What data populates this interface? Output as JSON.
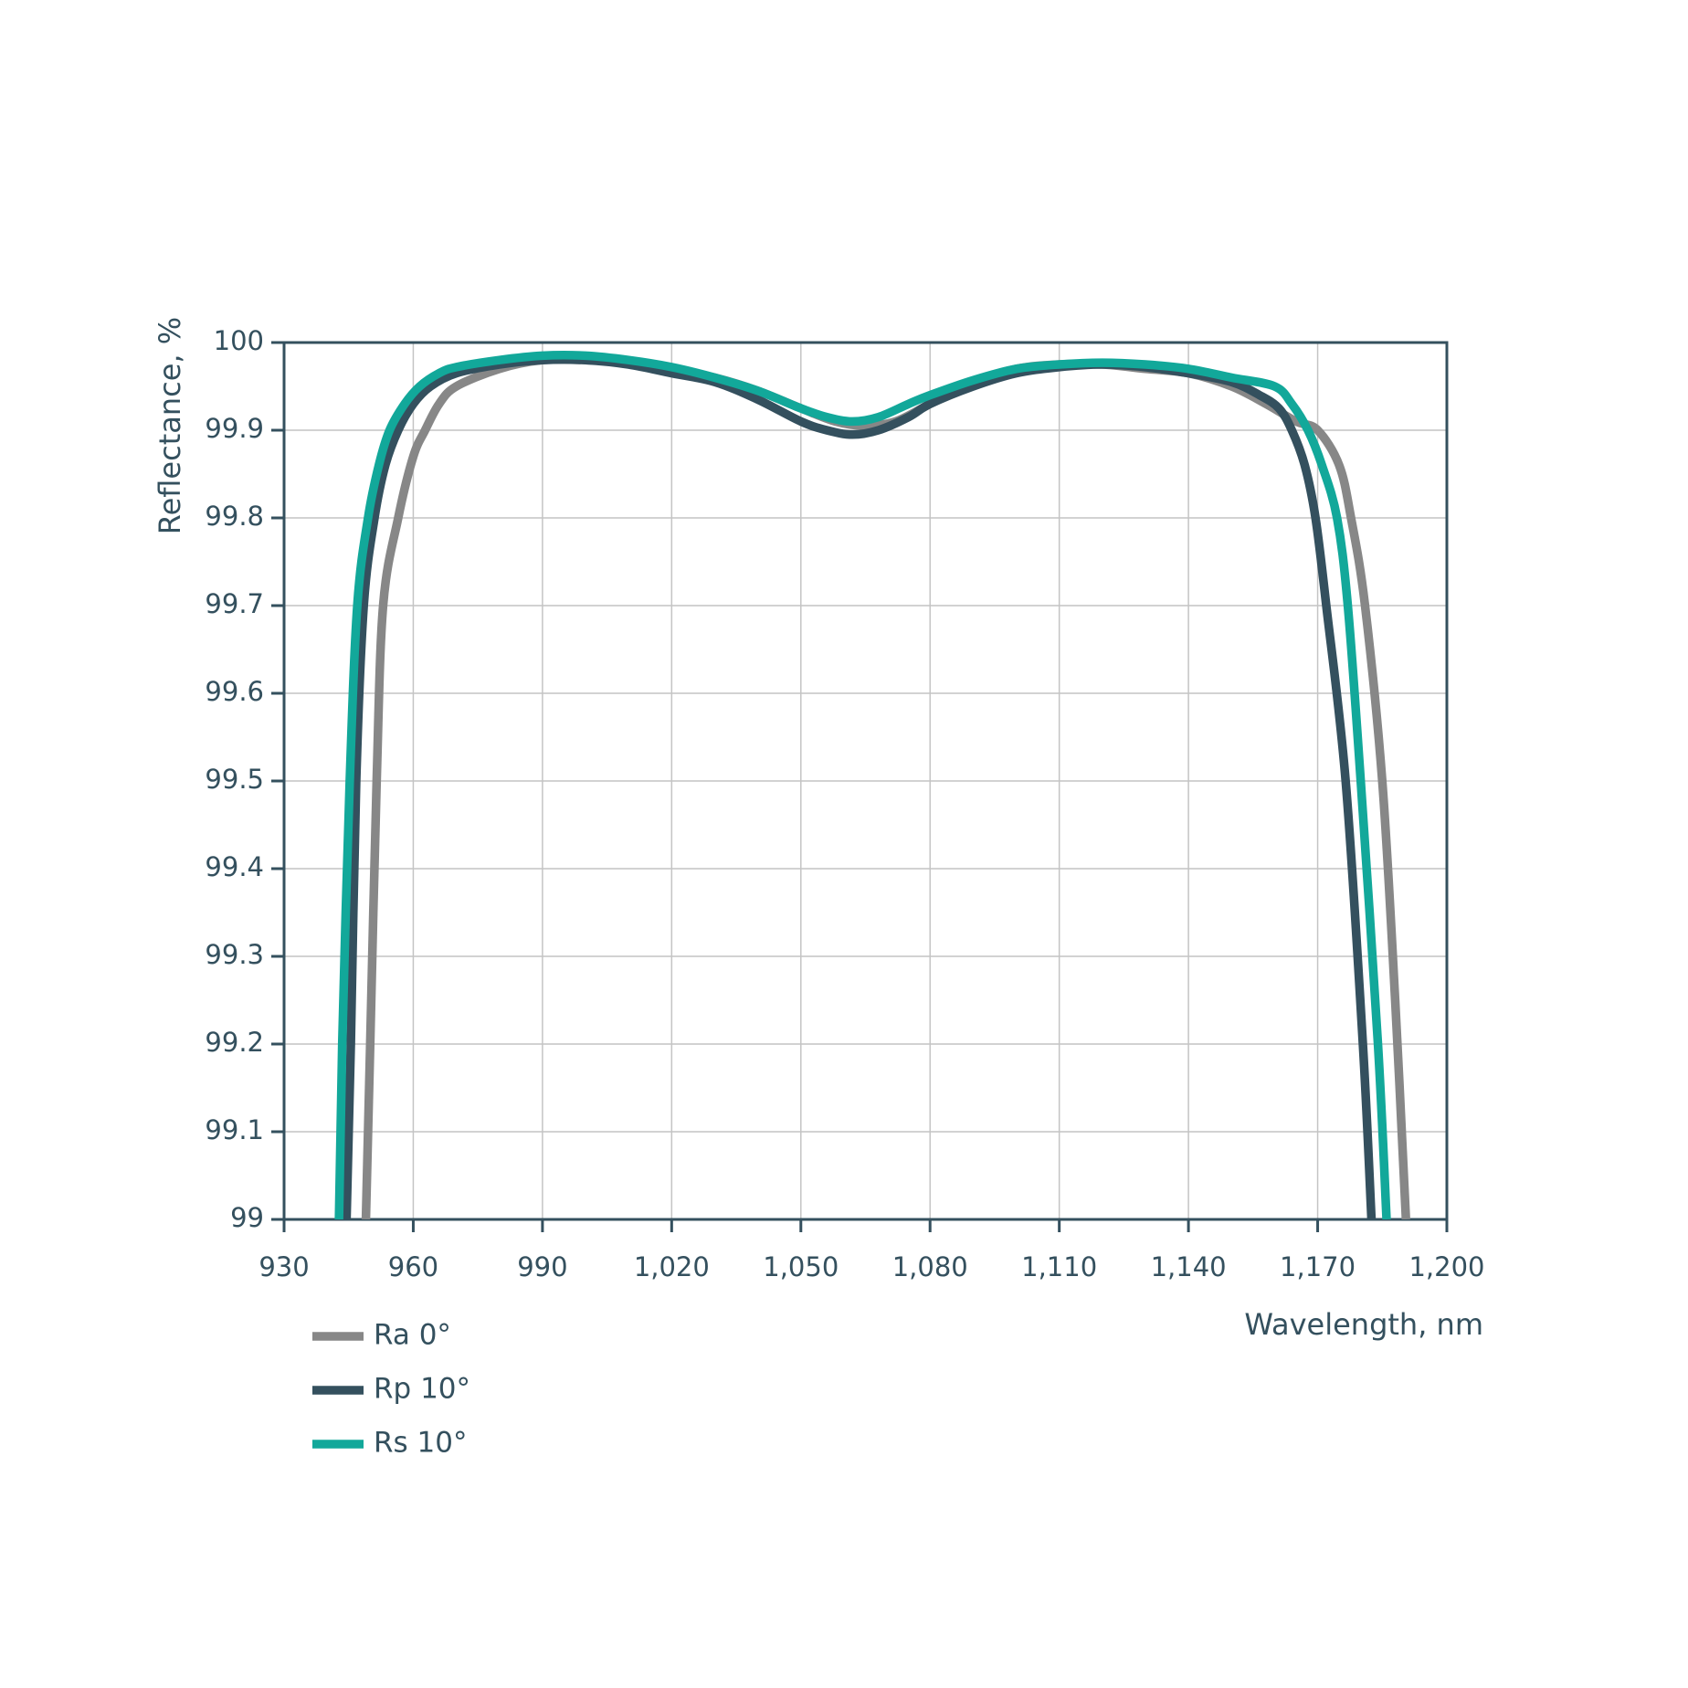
{
  "chart_data": {
    "type": "line",
    "x_label": "Wavelength, nm",
    "y_label": "Reflectance, %",
    "xlim": [
      930,
      1200
    ],
    "ylim": [
      99,
      100
    ],
    "xticks": [
      930,
      960,
      990,
      {
        "value": 1020,
        "label": "1,020"
      },
      {
        "value": 1050,
        "label": "1,050"
      },
      {
        "value": 1080,
        "label": "1,080"
      },
      {
        "value": 1110,
        "label": "1,110"
      },
      {
        "value": 1140,
        "label": "1,140"
      },
      {
        "value": 1170,
        "label": "1,170"
      },
      {
        "value": 1200,
        "label": "1,200"
      }
    ],
    "yticks": [
      99,
      99.1,
      99.2,
      99.3,
      99.4,
      99.5,
      99.6,
      99.7,
      99.8,
      99.9,
      100
    ],
    "grid": true,
    "legend": "bottom-left",
    "series": [
      {
        "name": "Ra 0°",
        "color": "#878787",
        "x": [
          949,
          950,
          951.5,
          953,
          956.5,
          960,
          962.75,
          966,
          970,
          980,
          990,
          1000,
          1010,
          1020,
          1030,
          1040,
          1050,
          1058,
          1065,
          1072,
          1080,
          1090,
          1100,
          1110,
          1120,
          1130,
          1140,
          1150,
          1158,
          1165,
          1170,
          1175,
          1177.75,
          1181,
          1185,
          1188,
          1190.5
        ],
        "values": [
          99,
          99.2,
          99.5,
          99.7,
          99.8,
          99.87,
          99.9,
          99.93,
          99.95,
          99.97,
          99.98,
          99.98,
          99.978,
          99.97,
          99.96,
          99.945,
          99.925,
          99.91,
          99.905,
          99.91,
          99.93,
          99.955,
          99.97,
          99.975,
          99.975,
          99.97,
          99.965,
          99.95,
          99.93,
          99.91,
          99.9,
          99.86,
          99.8,
          99.7,
          99.5,
          99.25,
          99
        ]
      },
      {
        "name": "Rp 10°",
        "color": "#34505e",
        "x": [
          944.5,
          945.5,
          946.75,
          948.5,
          951,
          953.5,
          956.5,
          960,
          964,
          970,
          980,
          990,
          1000,
          1010,
          1020,
          1030,
          1040,
          1050,
          1056,
          1062,
          1068,
          1075,
          1080,
          1090,
          1100,
          1110,
          1120,
          1130,
          1140,
          1150,
          1156.5,
          1161,
          1164,
          1167,
          1169.5,
          1172,
          1176.5,
          1180.5,
          1182.5
        ],
        "values": [
          99,
          99.2,
          99.5,
          99.7,
          99.8,
          99.86,
          99.9,
          99.93,
          99.95,
          99.965,
          99.975,
          99.98,
          99.98,
          99.975,
          99.965,
          99.955,
          99.935,
          99.91,
          99.9,
          99.895,
          99.9,
          99.915,
          99.93,
          99.95,
          99.965,
          99.972,
          99.975,
          99.972,
          99.965,
          99.955,
          99.94,
          99.925,
          99.9,
          99.86,
          99.8,
          99.7,
          99.5,
          99.2,
          99
        ]
      },
      {
        "name": "Rs 10°",
        "color": "#12a89a",
        "x": [
          942.75,
          943.5,
          945.25,
          947,
          949.5,
          952,
          954.5,
          958,
          961.5,
          966,
          970,
          980,
          990,
          1000,
          1010,
          1020,
          1030,
          1040,
          1050,
          1056,
          1062,
          1068,
          1075,
          1080,
          1090,
          1100,
          1110,
          1120,
          1130,
          1140,
          1150,
          1160,
          1164,
          1167.75,
          1171,
          1174.5,
          1177,
          1180,
          1184,
          1186
        ],
        "values": [
          99,
          99.2,
          99.5,
          99.7,
          99.8,
          99.86,
          99.9,
          99.93,
          99.95,
          99.965,
          99.972,
          99.98,
          99.985,
          99.985,
          99.98,
          99.972,
          99.96,
          99.945,
          99.925,
          99.915,
          99.91,
          99.915,
          99.93,
          99.94,
          99.957,
          99.97,
          99.975,
          99.977,
          99.975,
          99.97,
          99.96,
          99.95,
          99.93,
          99.9,
          99.86,
          99.8,
          99.7,
          99.5,
          99.2,
          99
        ]
      }
    ]
  }
}
